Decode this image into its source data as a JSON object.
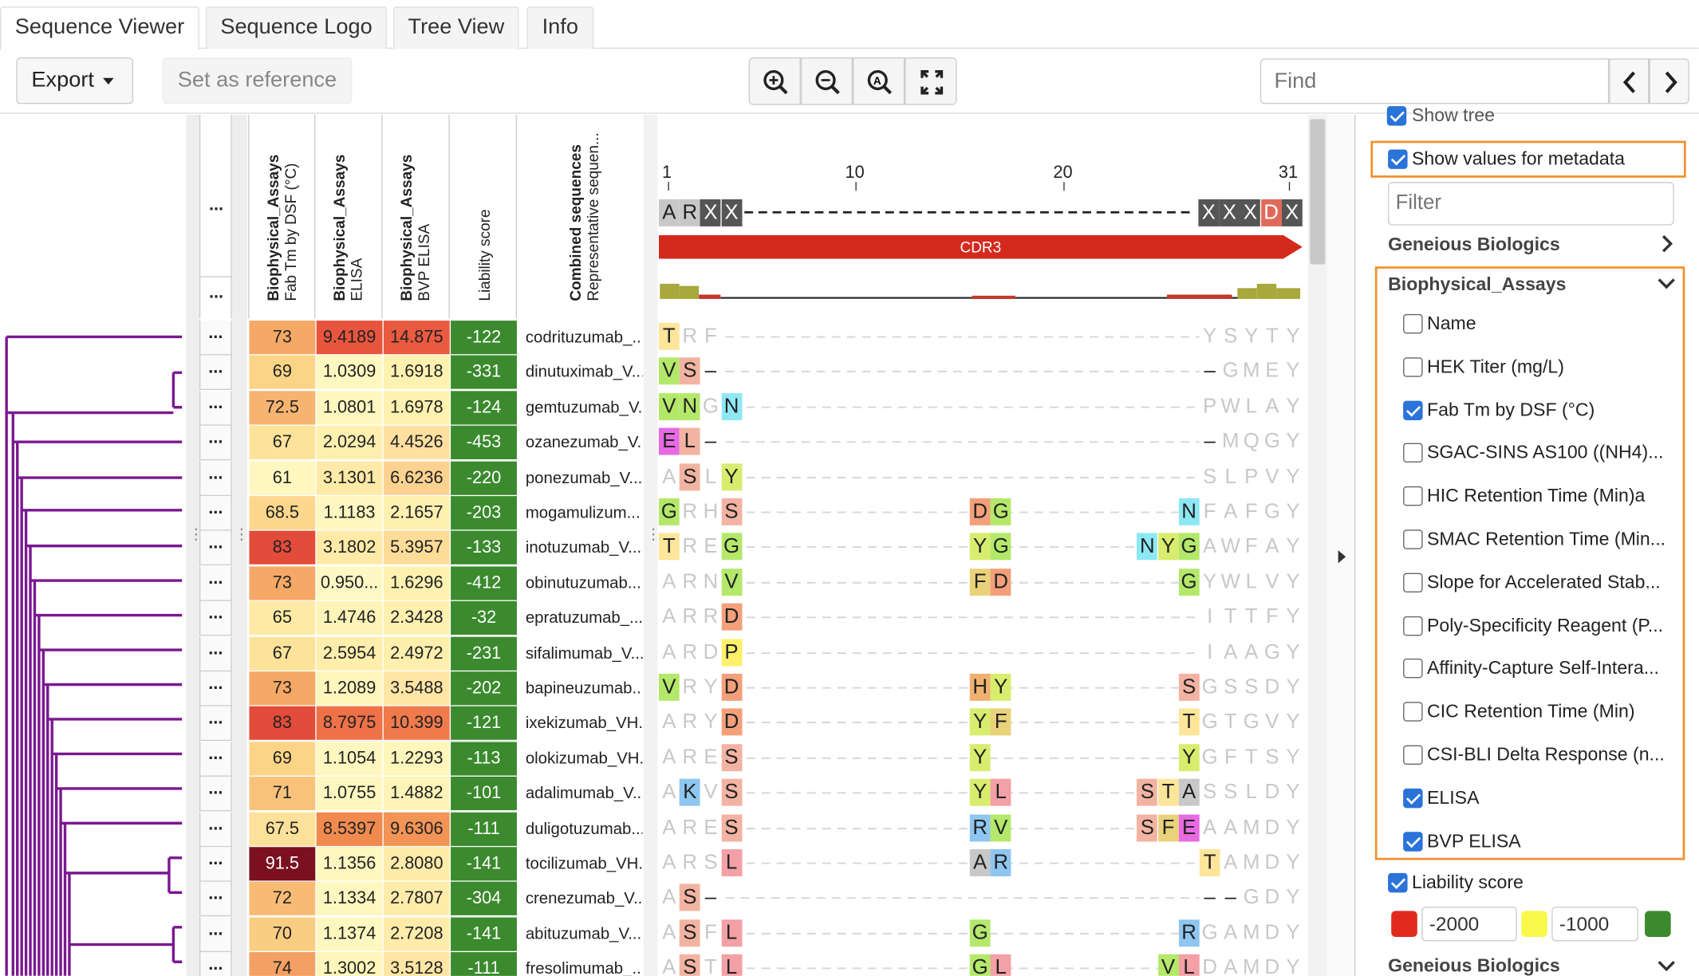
{
  "tabs": [
    "Sequence Viewer",
    "Sequence Logo",
    "Tree View",
    "Info"
  ],
  "toolbar": {
    "export_label": "Export",
    "set_reference_label": "Set as reference",
    "find_placeholder": "Find"
  },
  "columns": {
    "dsf": {
      "group": "Biophysical_Assays",
      "name": "Fab Tm by DSF (°C)"
    },
    "elisa": {
      "group": "Biophysical_Assays",
      "name": "ELISA"
    },
    "bvp": {
      "group": "Biophysical_Assays",
      "name": "BVP ELISA"
    },
    "liability": {
      "name": "Liability score"
    },
    "names": {
      "group": "Combined sequences",
      "name": "Representative sequen..."
    }
  },
  "dots": "...",
  "ruler": {
    "ticks": [
      "1",
      "10",
      "20",
      "31"
    ]
  },
  "consensus": {
    "start": [
      "A",
      "R",
      "X",
      "X"
    ],
    "end": [
      "X",
      "X",
      "X",
      "D",
      "X"
    ]
  },
  "annotation_label": "CDR3",
  "rows": [
    {
      "name": "codrituzumab_...",
      "dsf": "73",
      "elisa": "9.4189",
      "bvp": "14.875",
      "liab": "-122",
      "c": [
        "#f6a866",
        "#e8553e",
        "#ea5a40",
        "#3b8a2e"
      ]
    },
    {
      "name": "dinutuximab_V...",
      "dsf": "69",
      "elisa": "1.0309",
      "bvp": "1.6918",
      "liab": "-331",
      "c": [
        "#fbd487",
        "#fff7c0",
        "#fff2b0",
        "#3b8a2e"
      ]
    },
    {
      "name": "gemtuzumab_V...",
      "dsf": "72.5",
      "elisa": "1.0801",
      "bvp": "1.6978",
      "liab": "-124",
      "c": [
        "#f7b470",
        "#fff7c0",
        "#fff2b0",
        "#3b8a2e"
      ]
    },
    {
      "name": "ozanezumab_V...",
      "dsf": "67",
      "elisa": "2.0294",
      "bvp": "4.4526",
      "liab": "-453",
      "c": [
        "#fde39a",
        "#fff0b0",
        "#ffe0a0",
        "#3b8a2e"
      ]
    },
    {
      "name": "ponezumab_V...",
      "dsf": "61",
      "elisa": "3.1301",
      "bvp": "6.6236",
      "liab": "-220",
      "c": [
        "#fff7c0",
        "#ffeaa8",
        "#fdd290",
        "#3b8a2e"
      ]
    },
    {
      "name": "mogamulizum...",
      "dsf": "68.5",
      "elisa": "1.1183",
      "bvp": "2.1657",
      "liab": "-203",
      "c": [
        "#fcd78d",
        "#fff7c0",
        "#fff0b0",
        "#3b8a2e"
      ]
    },
    {
      "name": "inotuzumab_V...",
      "dsf": "83",
      "elisa": "3.1802",
      "bvp": "5.3957",
      "liab": "-133",
      "c": [
        "#e34b3a",
        "#ffeaa8",
        "#fddc98",
        "#3b8a2e"
      ]
    },
    {
      "name": "obinutuzumab...",
      "dsf": "73",
      "elisa": "0.950...",
      "bvp": "1.6296",
      "liab": "-412",
      "c": [
        "#f6a866",
        "#fff8c4",
        "#fff2b0",
        "#3b8a2e"
      ]
    },
    {
      "name": "epratuzumab_...",
      "dsf": "65",
      "elisa": "1.4746",
      "bvp": "2.3428",
      "liab": "-32",
      "c": [
        "#feeaa4",
        "#fff4b8",
        "#fff0b0",
        "#3b8a2e"
      ]
    },
    {
      "name": "sifalimumab_V...",
      "dsf": "67",
      "elisa": "2.5954",
      "bvp": "2.4972",
      "liab": "-231",
      "c": [
        "#fde39a",
        "#ffeeac",
        "#ffefae",
        "#3b8a2e"
      ]
    },
    {
      "name": "bapineuzumab...",
      "dsf": "73",
      "elisa": "1.2089",
      "bvp": "3.5488",
      "liab": "-202",
      "c": [
        "#f6a866",
        "#fff6bc",
        "#ffe6a4",
        "#3b8a2e"
      ]
    },
    {
      "name": "ixekizumab_VH...",
      "dsf": "83",
      "elisa": "8.7975",
      "bvp": "10.399",
      "liab": "-121",
      "c": [
        "#e34b3a",
        "#ee7148",
        "#f07a4c",
        "#3b8a2e"
      ]
    },
    {
      "name": "olokizumab_VH...",
      "dsf": "69",
      "elisa": "1.1054",
      "bvp": "1.2293",
      "liab": "-113",
      "c": [
        "#fbd487",
        "#fff7c0",
        "#fff6bc",
        "#3b8a2e"
      ]
    },
    {
      "name": "adalimumab_V...",
      "dsf": "71",
      "elisa": "1.0755",
      "bvp": "1.4882",
      "liab": "-101",
      "c": [
        "#f9c27a",
        "#fff7c0",
        "#fff4b8",
        "#3b8a2e"
      ]
    },
    {
      "name": "duligotuzumab...",
      "dsf": "67.5",
      "elisa": "8.5397",
      "bvp": "9.6306",
      "liab": "-111",
      "c": [
        "#fde09a",
        "#f08a4e",
        "#f29456",
        "#3b8a2e"
      ]
    },
    {
      "name": "tocilizumab_VH...",
      "dsf": "91.5",
      "elisa": "1.1356",
      "bvp": "2.8080",
      "liab": "-141",
      "c": [
        "#7a1020",
        "#fff7c0",
        "#ffecaa",
        "#3b8a2e"
      ]
    },
    {
      "name": "crenezumab_V...",
      "dsf": "72",
      "elisa": "1.1334",
      "bvp": "2.7807",
      "liab": "-304",
      "c": [
        "#f8bb76",
        "#fff7c0",
        "#ffecaa",
        "#3b8a2e"
      ]
    },
    {
      "name": "abituzumab_V...",
      "dsf": "70",
      "elisa": "1.1374",
      "bvp": "2.7208",
      "liab": "-141",
      "c": [
        "#face82",
        "#fff7c0",
        "#ffecaa",
        "#3b8a2e"
      ]
    },
    {
      "name": "fresolimumab_...",
      "dsf": "74",
      "elisa": "1.3002",
      "bvp": "3.5128",
      "liab": "-111",
      "c": [
        "#f4a064",
        "#fff6bc",
        "#ffe6a4",
        "#3b8a2e"
      ]
    }
  ],
  "seq_rows": [
    {
      "s": [
        "T",
        "R",
        "F"
      ],
      "m": [],
      "e": [
        "Y",
        "S",
        "Y",
        "T",
        "Y"
      ],
      "sc": [
        "#fde59a",
        null,
        null
      ],
      "dash": "line"
    },
    {
      "s": [
        "V",
        "S",
        "–"
      ],
      "m": [],
      "e": [
        "–",
        "G",
        "M",
        "E",
        "Y"
      ],
      "sc": [
        "#b4e86a",
        "#f3b3a2",
        null
      ],
      "dash": "dash"
    },
    {
      "s": [
        "V",
        "N",
        "G",
        "N"
      ],
      "m": [],
      "e": [
        "P",
        "W",
        "L",
        "A",
        "Y"
      ],
      "sc": [
        "#b4e86a",
        "#b4e86a",
        null,
        "#8ee8f4"
      ],
      "dash": "line"
    },
    {
      "s": [
        "E",
        "L",
        "–"
      ],
      "m": [],
      "e": [
        "–",
        "M",
        "Q",
        "G",
        "Y"
      ],
      "sc": [
        "#e76ae2",
        "#f3b3a2",
        null
      ],
      "dash": "dash"
    },
    {
      "s": [
        "A",
        "S",
        "L",
        "Y"
      ],
      "m": [],
      "e": [
        "S",
        "L",
        "P",
        "V",
        "Y"
      ],
      "sc": [
        null,
        "#f3b3a2",
        null,
        "#d8ec6e"
      ],
      "dash": "line"
    },
    {
      "s": [
        "G",
        "R",
        "H",
        "S"
      ],
      "m": [
        "D",
        "G"
      ],
      "e": [
        "N",
        "F",
        "A",
        "F",
        "G",
        "Y"
      ],
      "sc": [
        "#b4e86a",
        null,
        null,
        "#f3b3a2"
      ],
      "mc": [
        "#f3a07a",
        "#b4e86a"
      ],
      "ec": [
        "#8ee8f4"
      ],
      "dash": "line"
    },
    {
      "s": [
        "T",
        "R",
        "E",
        "G"
      ],
      "m": [
        "Y",
        "G"
      ],
      "e": [
        "N",
        "Y",
        "G",
        "A",
        "W",
        "F",
        "A",
        "Y"
      ],
      "sc": [
        "#fde59a",
        null,
        null,
        "#b4e86a"
      ],
      "mc": [
        "#d8ec6e",
        "#b4e86a"
      ],
      "ec": [
        "#8ee8f4",
        "#d8ec6e",
        "#b4e86a"
      ],
      "dash": "line"
    },
    {
      "s": [
        "A",
        "R",
        "N",
        "V"
      ],
      "m": [
        "F",
        "D"
      ],
      "e": [
        "G",
        "Y",
        "W",
        "L",
        "V",
        "Y"
      ],
      "sc": [
        null,
        null,
        null,
        "#b4e86a"
      ],
      "mc": [
        "#e9d27a",
        "#f3a07a"
      ],
      "ec": [
        "#b4e86a"
      ],
      "dash": "line"
    },
    {
      "s": [
        "A",
        "R",
        "R",
        "D"
      ],
      "m": [],
      "e": [
        "I",
        "T",
        "T",
        "F",
        "Y"
      ],
      "sc": [
        null,
        null,
        null,
        "#f3a07a"
      ],
      "dash": "line"
    },
    {
      "s": [
        "A",
        "R",
        "D",
        "P"
      ],
      "m": [],
      "e": [
        "I",
        "A",
        "A",
        "G",
        "Y"
      ],
      "sc": [
        null,
        null,
        null,
        "#fdf06a"
      ],
      "dash": "line"
    },
    {
      "s": [
        "V",
        "R",
        "Y",
        "D"
      ],
      "m": [
        "H",
        "Y"
      ],
      "e": [
        "S",
        "G",
        "S",
        "S",
        "D",
        "Y"
      ],
      "sc": [
        "#b4e86a",
        null,
        null,
        "#f3a07a"
      ],
      "mc": [
        "#f0b070",
        "#d8ec6e"
      ],
      "ec": [
        "#f3b3a2"
      ],
      "dash": "line"
    },
    {
      "s": [
        "A",
        "R",
        "Y",
        "D"
      ],
      "m": [
        "Y",
        "F"
      ],
      "e": [
        "T",
        "G",
        "T",
        "G",
        "V",
        "Y"
      ],
      "sc": [
        null,
        null,
        null,
        "#f3a07a"
      ],
      "mc": [
        "#d8ec6e",
        "#e9d27a"
      ],
      "ec": [
        "#fde59a"
      ],
      "dash": "line"
    },
    {
      "s": [
        "A",
        "R",
        "E",
        "S"
      ],
      "m": [
        "Y"
      ],
      "e": [
        "Y",
        "G",
        "F",
        "T",
        "S",
        "Y"
      ],
      "sc": [
        null,
        null,
        null,
        "#f3b3a2"
      ],
      "mc": [
        "#d8ec6e"
      ],
      "ec": [
        "#d8ec6e"
      ],
      "dash": "line"
    },
    {
      "s": [
        "A",
        "K",
        "V",
        "S"
      ],
      "m": [
        "Y",
        "L"
      ],
      "e": [
        "S",
        "T",
        "A",
        "S",
        "S",
        "L",
        "D",
        "Y"
      ],
      "sc": [
        null,
        "#8ec6f0",
        null,
        "#f3b3a2"
      ],
      "mc": [
        "#d8ec6e",
        "#f3a0a6"
      ],
      "ec": [
        "#f3b3a2",
        "#fde59a",
        "#c8c8c8"
      ],
      "dash": "line"
    },
    {
      "s": [
        "A",
        "R",
        "E",
        "S"
      ],
      "m": [
        "R",
        "V"
      ],
      "e": [
        "S",
        "F",
        "E",
        "A",
        "A",
        "M",
        "D",
        "Y"
      ],
      "sc": [
        null,
        null,
        null,
        "#f3b3a2"
      ],
      "mc": [
        "#8ec6f0",
        "#b4e86a"
      ],
      "ec": [
        "#f3b3a2",
        "#e9d27a",
        "#e76ae2"
      ],
      "dash": "line"
    },
    {
      "s": [
        "A",
        "R",
        "S",
        "L"
      ],
      "m": [
        "A",
        "R"
      ],
      "e": [
        "T",
        "A",
        "M",
        "D",
        "Y"
      ],
      "sc": [
        null,
        null,
        null,
        "#f3a0a6"
      ],
      "mc": [
        "#c8c8c8",
        "#8ec6f0"
      ],
      "ec": [
        "#fde59a"
      ],
      "dash": "line"
    },
    {
      "s": [
        "A",
        "S",
        "–"
      ],
      "m": [],
      "e": [
        "–",
        "–",
        "G",
        "D",
        "Y"
      ],
      "sc": [
        null,
        "#f3b3a2",
        null
      ],
      "dash": "dash"
    },
    {
      "s": [
        "A",
        "S",
        "F",
        "L"
      ],
      "m": [
        "G"
      ],
      "e": [
        "R",
        "G",
        "A",
        "M",
        "D",
        "Y"
      ],
      "sc": [
        null,
        "#f3b3a2",
        null,
        "#f3a0a6"
      ],
      "mc": [
        "#b4e86a"
      ],
      "ec": [
        "#8ec6f0"
      ],
      "dash": "line"
    },
    {
      "s": [
        "A",
        "S",
        "T",
        "L"
      ],
      "m": [
        "G",
        "L"
      ],
      "e": [
        "V",
        "L",
        "D",
        "A",
        "M",
        "D",
        "Y"
      ],
      "sc": [
        null,
        "#f3b3a2",
        null,
        "#f3a0a6"
      ],
      "mc": [
        "#b4e86a",
        "#f3a0a6"
      ],
      "ec": [
        "#b4e86a",
        "#f3a0a6"
      ],
      "dash": "line"
    }
  ],
  "sidebar": {
    "show_tree": "Show tree",
    "show_values": "Show values for metadata",
    "filter_placeholder": "Filter",
    "group1": "Geneious Biologics",
    "group2": "Biophysical_Assays",
    "fields": [
      {
        "label": "Name",
        "checked": false
      },
      {
        "label": "HEK Titer (mg/L)",
        "checked": false
      },
      {
        "label": "Fab Tm by DSF (°C)",
        "checked": true
      },
      {
        "label": "SGAC-SINS AS100 ((NH4)...",
        "checked": false
      },
      {
        "label": "HIC Retention Time (Min)a",
        "checked": false
      },
      {
        "label": "SMAC Retention Time (Min...",
        "checked": false
      },
      {
        "label": "Slope for Accelerated Stab...",
        "checked": false
      },
      {
        "label": "Poly-Specificity Reagent (P...",
        "checked": false
      },
      {
        "label": "Affinity-Capture Self-Intera...",
        "checked": false
      },
      {
        "label": "CIC Retention Time (Min)",
        "checked": false
      },
      {
        "label": "CSI-BLI Delta Response (n...",
        "checked": false
      },
      {
        "label": "ELISA",
        "checked": true
      },
      {
        "label": "BVP ELISA",
        "checked": true
      }
    ],
    "liability_label": "Liability score",
    "min_value": "-2000",
    "mid_value": "-1000",
    "colors": {
      "low": "#e02a1f",
      "mid": "#f8f84a",
      "high": "#3b8a2e"
    },
    "group3": "Geneious Biologics"
  },
  "colors": {
    "accent": "#2a73d9",
    "highlight": "#f0922c",
    "tree": "#7a1890",
    "cdr3": "#d42a1e"
  }
}
